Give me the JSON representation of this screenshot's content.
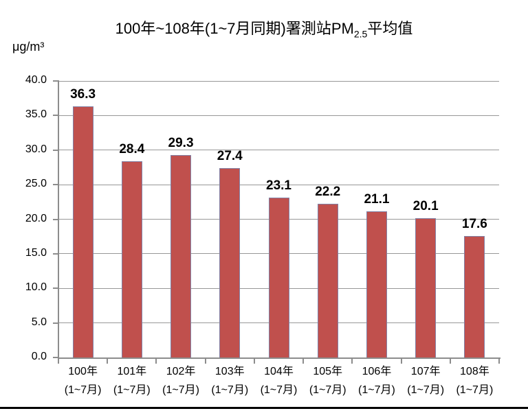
{
  "chart": {
    "title_parts": {
      "main": "100年~108年(1~7月同期)署測站PM",
      "subscript": "2.5",
      "tail": "平均值"
    },
    "y_unit": "μg/m³"
  },
  "chart_data": {
    "type": "bar",
    "title": "100年~108年(1~7月同期)署測站PM2.5平均值",
    "ylabel": "μg/m³",
    "categories": [
      "100年",
      "101年",
      "102年",
      "103年",
      "104年",
      "105年",
      "106年",
      "107年",
      "108年"
    ],
    "category_sublabel": "(1~7月)",
    "values": [
      36.3,
      28.4,
      29.3,
      27.4,
      23.1,
      22.2,
      21.1,
      20.1,
      17.6
    ],
    "ylim": [
      0,
      40
    ],
    "ytick_step": 5,
    "yticks": [
      "40.0",
      "35.0",
      "30.0",
      "25.0",
      "20.0",
      "15.0",
      "10.0",
      "5.0",
      "0.0"
    ],
    "grid": true,
    "legend": "none",
    "bar_color": "#c0504d",
    "bar_border_color": "#8181a6",
    "gridline_color": "#979797",
    "axis_color": "#8c8c8c",
    "text_color": "#000000"
  }
}
